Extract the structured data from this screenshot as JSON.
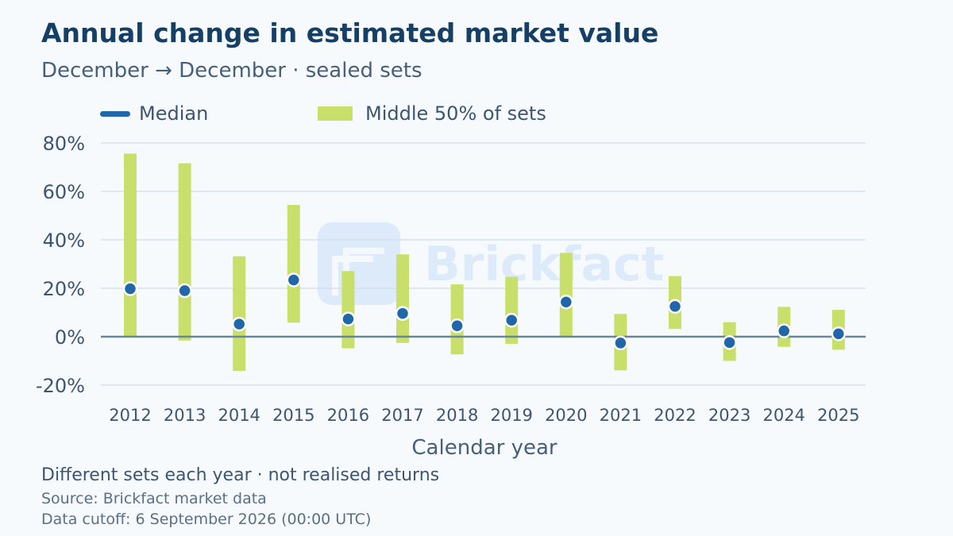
{
  "chart_data": {
    "type": "range",
    "title": "Annual change in estimated market value",
    "subtitle": "December → December · sealed sets",
    "xlabel": "Calendar year",
    "ylabel": "",
    "ylim": [
      -20,
      80
    ],
    "yticks": [
      80,
      60,
      40,
      20,
      0,
      -20
    ],
    "ytick_labels": [
      "80%",
      "60%",
      "40%",
      "20%",
      "0%",
      "-20%"
    ],
    "legend": {
      "median": "Median",
      "range": "Middle 50% of sets"
    },
    "categories": [
      "2012",
      "2013",
      "2014",
      "2015",
      "2016",
      "2017",
      "2018",
      "2019",
      "2020",
      "2021",
      "2022",
      "2023",
      "2024",
      "2025"
    ],
    "median": [
      19.8,
      19.0,
      5.2,
      23.4,
      7.3,
      9.6,
      4.5,
      6.8,
      14.3,
      -2.6,
      12.5,
      -2.4,
      2.4,
      1.2
    ],
    "q1": [
      0.3,
      -1.6,
      -14.1,
      5.8,
      -4.8,
      -2.6,
      -7.3,
      -3.0,
      0.3,
      -13.9,
      3.2,
      -10.0,
      -4.2,
      -5.4
    ],
    "q3": [
      75.6,
      71.6,
      33.2,
      54.4,
      27.1,
      34.0,
      21.6,
      24.7,
      34.6,
      9.4,
      25.0,
      6.0,
      12.3,
      11.1
    ],
    "colors": {
      "median": "#1f67a8",
      "range": "#c8e06a",
      "zero_line": "#6a8499",
      "grid": "#d6e0ea"
    },
    "grid": true,
    "legend_position": "top-left"
  },
  "watermark": "Brickfact",
  "footer": {
    "note": "Different sets each year · not realised returns",
    "source": "Source: Brickfact market data",
    "cutoff": "Data cutoff: 6 September 2026 (00:00 UTC)"
  }
}
